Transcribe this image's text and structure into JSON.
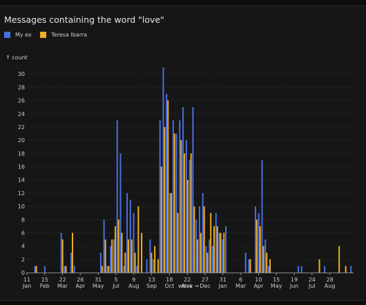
{
  "title": "Messages containing the word \"love\"",
  "legend": [
    {
      "name": "My ex",
      "color": "#4a6fe0"
    },
    {
      "name": "Teresa Ibarra",
      "color": "#efad1f"
    }
  ],
  "chart_data": {
    "type": "bar",
    "title": "Messages containing the word \"love\"",
    "ylabel": "↑ count",
    "xlabel": "week →",
    "ylim": [
      0,
      32
    ],
    "yticks": [
      0,
      2,
      4,
      6,
      8,
      10,
      12,
      14,
      16,
      18,
      20,
      22,
      24,
      26,
      28,
      30
    ],
    "grid": true,
    "legend_position": "top-left",
    "x_tick_labels": [
      {
        "day": "11",
        "month": "Jan"
      },
      {
        "day": "15",
        "month": "Feb"
      },
      {
        "day": "22",
        "month": "Mar"
      },
      {
        "day": "26",
        "month": "Apr"
      },
      {
        "day": "31",
        "month": "May"
      },
      {
        "day": "5",
        "month": "Jul"
      },
      {
        "day": "9",
        "month": "Aug"
      },
      {
        "day": "13",
        "month": "Sep"
      },
      {
        "day": "18",
        "month": "Oct"
      },
      {
        "day": "22",
        "month": "Nov"
      },
      {
        "day": "27",
        "month": "Dec"
      },
      {
        "day": "31",
        "month": "Jan"
      },
      {
        "day": "6",
        "month": "Mar"
      },
      {
        "day": "10",
        "month": "Apr"
      },
      {
        "day": "15",
        "month": "May"
      },
      {
        "day": "19",
        "month": "Jun"
      },
      {
        "day": "24",
        "month": "Jul"
      },
      {
        "day": "28",
        "month": "Aug"
      }
    ],
    "series": [
      {
        "name": "My ex",
        "color": "#4a6fe0",
        "values": [
          0,
          0,
          1,
          0,
          0,
          1,
          0,
          0,
          0,
          0,
          6,
          1,
          0,
          3,
          1,
          0,
          0,
          0,
          0,
          0,
          0,
          0,
          3,
          8,
          1,
          4,
          5,
          23,
          18,
          1,
          12,
          11,
          9,
          1,
          0,
          0,
          2,
          5,
          2,
          0,
          23,
          31,
          27,
          12,
          23,
          21,
          23,
          25,
          20,
          17,
          25,
          8,
          10,
          12,
          4,
          5,
          4,
          9,
          6,
          5,
          7,
          0,
          0,
          0,
          0,
          0,
          3,
          2,
          0,
          10,
          9,
          17,
          5,
          1,
          0,
          0,
          0,
          0,
          0,
          0,
          0,
          0,
          1,
          1,
          0,
          0,
          0,
          0,
          0,
          0,
          1,
          0,
          0,
          0,
          0,
          0,
          0,
          0,
          1
        ]
      },
      {
        "name": "Teresa Ibarra",
        "color": "#efad1f",
        "values": [
          0,
          0,
          1,
          0,
          0,
          0,
          0,
          0,
          0,
          0,
          5,
          1,
          0,
          6,
          0,
          0,
          0,
          0,
          0,
          0,
          0,
          0,
          1,
          5,
          1,
          5,
          7,
          8,
          6,
          3,
          5,
          5,
          3,
          10,
          6,
          0,
          0,
          3,
          4,
          2,
          16,
          22,
          26,
          12,
          21,
          9,
          20,
          18,
          14,
          18,
          10,
          5,
          6,
          10,
          3,
          9,
          7,
          7,
          6,
          6,
          0,
          0,
          0,
          0,
          0,
          0,
          0,
          2,
          0,
          8,
          7,
          4,
          3,
          2,
          0,
          0,
          0,
          0,
          0,
          0,
          0,
          0,
          0,
          0,
          0,
          0,
          0,
          0,
          2,
          0,
          0,
          0,
          0,
          0,
          4,
          0,
          1,
          0,
          0
        ]
      }
    ]
  }
}
